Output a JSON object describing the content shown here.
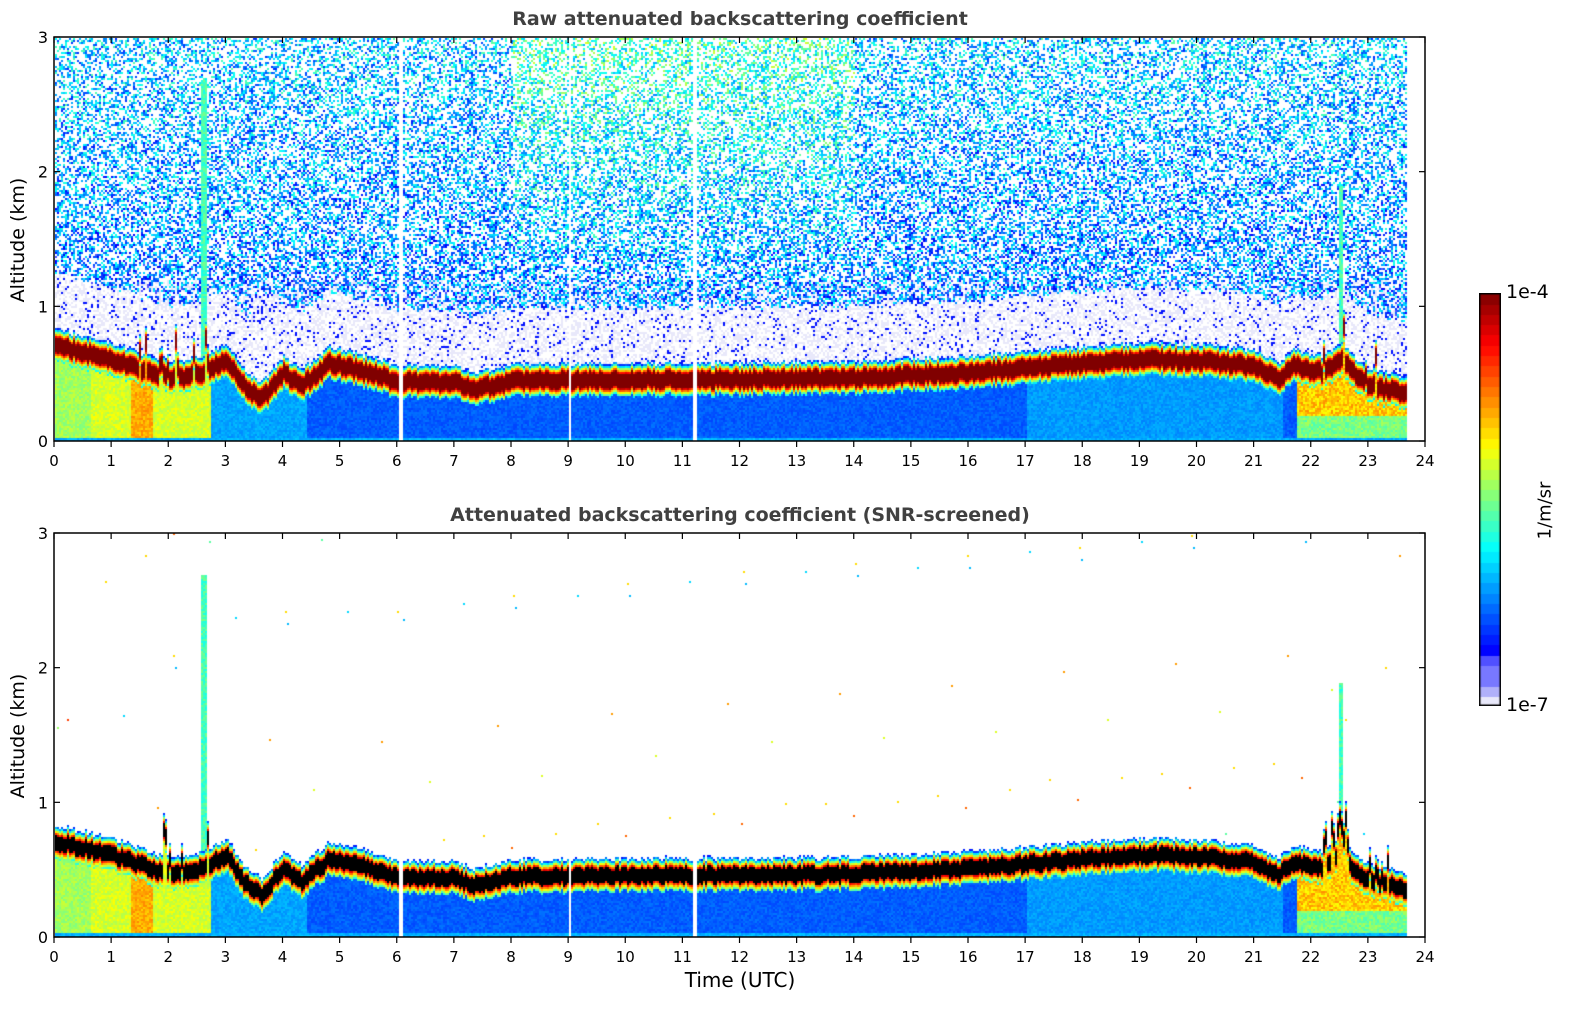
{
  "chart_data": [
    {
      "type": "heatmap",
      "title": "Raw attenuated backscattering coefficient",
      "xlabel": "",
      "ylabel": "Altitude (km)",
      "xlim": [
        0,
        24
      ],
      "ylim": [
        0,
        3
      ],
      "x_ticks": [
        "0",
        "1",
        "2",
        "3",
        "4",
        "5",
        "6",
        "7",
        "8",
        "9",
        "10",
        "11",
        "12",
        "13",
        "14",
        "15",
        "16",
        "17",
        "18",
        "19",
        "20",
        "21",
        "22",
        "23",
        "24"
      ],
      "y_ticks": [
        "0",
        "1",
        "2",
        "3"
      ],
      "data_end_hour": 23.65,
      "screened": false,
      "colorscale": "jet (log)",
      "layer_top_km": {
        "hours": [
          0,
          1,
          2,
          2.6,
          3.0,
          3.3,
          3.6,
          4.0,
          4.3,
          4.8,
          5.5,
          6.0,
          7.0,
          7.3,
          8,
          10,
          12,
          14,
          16,
          18,
          19,
          20,
          21,
          21.4,
          21.7,
          22.2,
          22.5,
          23,
          23.65
        ],
        "values": [
          0.75,
          0.65,
          0.5,
          0.55,
          0.65,
          0.45,
          0.35,
          0.55,
          0.45,
          0.62,
          0.55,
          0.48,
          0.48,
          0.42,
          0.49,
          0.5,
          0.5,
          0.51,
          0.55,
          0.62,
          0.65,
          0.64,
          0.6,
          0.5,
          0.6,
          0.55,
          0.65,
          0.45,
          0.4
        ]
      }
    },
    {
      "type": "heatmap",
      "title": "Attenuated backscattering coefficient (SNR-screened)",
      "xlabel": "Time (UTC)",
      "ylabel": "Altitude (km)",
      "xlim": [
        0,
        24
      ],
      "ylim": [
        0,
        3
      ],
      "x_ticks": [
        "0",
        "1",
        "2",
        "3",
        "4",
        "5",
        "6",
        "7",
        "8",
        "9",
        "10",
        "11",
        "12",
        "13",
        "14",
        "15",
        "16",
        "17",
        "18",
        "19",
        "20",
        "21",
        "22",
        "23",
        "24"
      ],
      "y_ticks": [
        "0",
        "1",
        "2",
        "3"
      ],
      "data_end_hour": 23.65,
      "screened": true,
      "colorscale": "jet (log)"
    }
  ],
  "colorbar": {
    "max_label": "1e-4",
    "min_label": "1e-7",
    "unit": "1/m/sr",
    "range": [
      1e-07,
      0.0001
    ]
  },
  "colors": {
    "title": "#404040",
    "frame": "#000000"
  }
}
